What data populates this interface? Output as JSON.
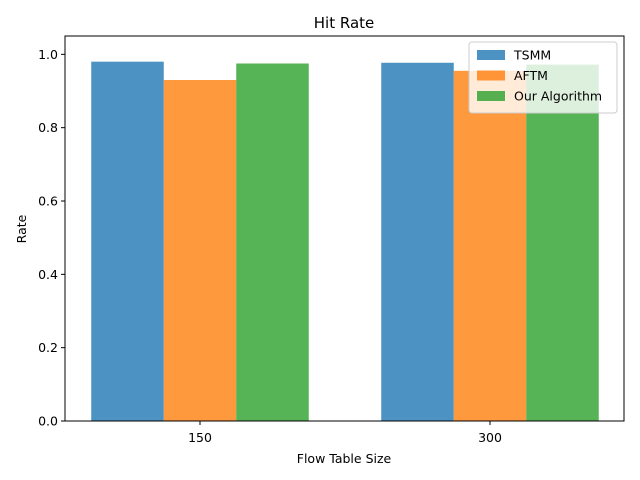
{
  "chart_data": {
    "type": "bar",
    "title": "Hit Rate",
    "xlabel": "Flow Table Size",
    "ylabel": "Rate",
    "categories": [
      "150",
      "300"
    ],
    "series": [
      {
        "name": "TSMM",
        "values": [
          0.98,
          0.977
        ],
        "color": "#1f77b4"
      },
      {
        "name": "AFTM",
        "values": [
          0.93,
          0.955
        ],
        "color": "#ff7f0e"
      },
      {
        "name": "Our Algorithm",
        "values": [
          0.975,
          0.972
        ],
        "color": "#2ca02c"
      }
    ],
    "ylim": [
      0,
      1.05
    ],
    "yticks": [
      "0.0",
      "0.2",
      "0.4",
      "0.6",
      "0.8",
      "1.0"
    ],
    "bar_opacity": 0.8,
    "grid": false,
    "legend_position": "top-right"
  }
}
